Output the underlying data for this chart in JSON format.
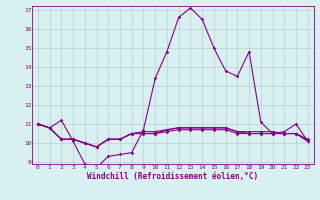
{
  "xlabel": "Windchill (Refroidissement éolien,°C)",
  "x": [
    0,
    1,
    2,
    3,
    4,
    5,
    6,
    7,
    8,
    9,
    10,
    11,
    12,
    13,
    14,
    15,
    16,
    17,
    18,
    19,
    20,
    21,
    22,
    23
  ],
  "line1": [
    11.0,
    10.8,
    11.2,
    10.1,
    8.9,
    8.7,
    9.3,
    9.4,
    9.5,
    10.7,
    13.4,
    14.8,
    16.6,
    17.1,
    16.5,
    15.0,
    13.8,
    13.5,
    14.8,
    11.1,
    10.5,
    10.6,
    11.0,
    10.1
  ],
  "line2": [
    11.0,
    10.8,
    10.2,
    10.2,
    10.0,
    9.8,
    10.2,
    10.2,
    10.5,
    10.5,
    10.5,
    10.6,
    10.7,
    10.7,
    10.7,
    10.7,
    10.7,
    10.5,
    10.5,
    10.5,
    10.5,
    10.5,
    10.5,
    10.2
  ],
  "line3": [
    11.0,
    10.8,
    10.2,
    10.2,
    10.0,
    9.8,
    10.2,
    10.2,
    10.5,
    10.5,
    10.5,
    10.7,
    10.8,
    10.8,
    10.8,
    10.8,
    10.8,
    10.6,
    10.5,
    10.5,
    10.5,
    10.5,
    10.5,
    10.1
  ],
  "line4": [
    11.0,
    10.8,
    10.2,
    10.2,
    10.0,
    9.8,
    10.2,
    10.2,
    10.5,
    10.6,
    10.6,
    10.7,
    10.8,
    10.8,
    10.8,
    10.8,
    10.8,
    10.6,
    10.6,
    10.6,
    10.6,
    10.5,
    10.5,
    10.1
  ],
  "line_color": "#880088",
  "bg_color": "#d8f0f0",
  "grid_color": "#b8d0d0",
  "ylim": [
    9,
    17
  ],
  "yticks": [
    9,
    10,
    11,
    12,
    13,
    14,
    15,
    16,
    17
  ],
  "xticks": [
    0,
    1,
    2,
    3,
    4,
    5,
    6,
    7,
    8,
    9,
    10,
    11,
    12,
    13,
    14,
    15,
    16,
    17,
    18,
    19,
    20,
    21,
    22,
    23
  ],
  "marker": "D",
  "markersize": 1.8,
  "linewidth": 0.8,
  "tick_fontsize": 4.5,
  "label_fontsize": 5.5
}
